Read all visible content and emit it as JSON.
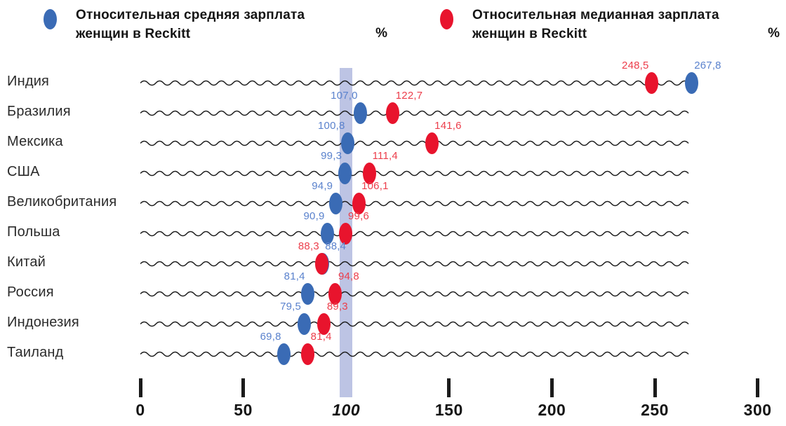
{
  "legend": [
    {
      "series": "average",
      "label_line1": "Относительная средняя зарплата",
      "label_line2": "женщин в Reckitt",
      "unit": "%",
      "color": "#3a6bb5"
    },
    {
      "series": "median",
      "label_line1": "Относительная медианная зарплата",
      "label_line2": "женщин в Reckitt",
      "unit": "%",
      "color": "#e8142d"
    }
  ],
  "chart_data": {
    "type": "scatter",
    "subtype": "horizontal-dot-plot",
    "unit": "%",
    "categories": [
      "Индия",
      "Бразилия",
      "Мексика",
      "США",
      "Великобритания",
      "Польша",
      "Китай",
      "Россия",
      "Индонезия",
      "Таиланд"
    ],
    "series": [
      {
        "name": "Относительная средняя зарплата женщин в Reckitt",
        "color": "#3a6bb5",
        "label_color": "#5a82cd",
        "values": [
          267.8,
          107.0,
          100.8,
          99.3,
          94.9,
          90.9,
          88.4,
          81.4,
          79.5,
          69.8
        ],
        "labels": [
          "267,8",
          "107,0",
          "100,8",
          "99,3",
          "94,9",
          "90,9",
          "88,4",
          "81,4",
          "79,5",
          "69,8"
        ]
      },
      {
        "name": "Относительная медианная зарплата женщин в Reckitt",
        "color": "#e8142d",
        "label_color": "#ec3e4b",
        "values": [
          248.5,
          122.7,
          141.6,
          111.4,
          106.1,
          99.6,
          88.3,
          94.8,
          89.3,
          81.4
        ],
        "labels": [
          "248,5",
          "122,7",
          "141,6",
          "111,4",
          "106,1",
          "99,6",
          "88,3",
          "94,8",
          "89,3",
          "81,4"
        ]
      }
    ],
    "x_axis": {
      "range": [
        0,
        300
      ],
      "ticks": [
        0,
        50,
        100,
        150,
        200,
        250,
        300
      ],
      "tick_labels": [
        "0",
        "50",
        "100",
        "150",
        "200",
        "250",
        "300"
      ],
      "highlight_value": 100
    },
    "reference_band": {
      "value": 100,
      "color": "#bdc4e4"
    },
    "grid": "wavy-row-lines",
    "line_color": "#1d1d1d",
    "legend_position": "top"
  }
}
